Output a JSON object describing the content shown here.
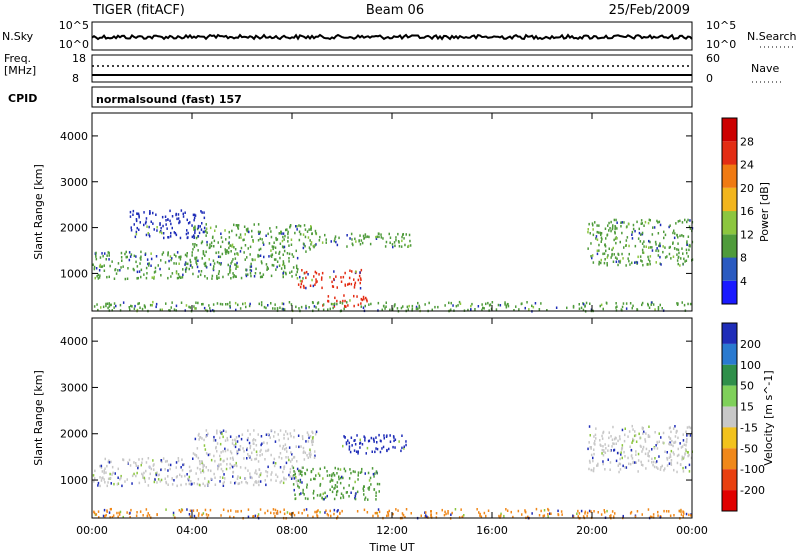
{
  "header": {
    "title": "TIGER (fitACF)",
    "beam": "Beam 06",
    "date": "25/Feb/2009"
  },
  "panels": {
    "nsky": {
      "left_label": "N.Sky",
      "right_label": "N.Search",
      "ticks_left": [
        "10^5",
        "10^0"
      ],
      "ticks_right": [
        "10^5",
        "10^0"
      ]
    },
    "freq": {
      "left_label_1": "Freq.",
      "left_label_2": "[MHz]",
      "right_label": "Nave",
      "ticks_left": [
        "18",
        "8"
      ],
      "ticks_right": [
        "60",
        "0"
      ]
    },
    "cpid": {
      "label": "CPID",
      "value": "normalsound (fast) 157"
    }
  },
  "chart_data": [
    {
      "type": "heatmap",
      "title": "",
      "xlabel": "",
      "ylabel": "Slant Range [km]",
      "x_ticks": [
        "00:00",
        "04:00",
        "08:00",
        "12:00",
        "16:00",
        "20:00",
        "00:00"
      ],
      "xlim_hours": [
        0,
        24
      ],
      "y_ticks": [
        1000,
        2000,
        3000,
        4000
      ],
      "ylim": [
        180,
        4500
      ],
      "colorbar": {
        "label": "Power [dB]",
        "ticks": [
          "4",
          "8",
          "12",
          "16",
          "20",
          "24",
          "28"
        ],
        "colors": [
          "#1a1aff",
          "#2a5ac0",
          "#4f9b3b",
          "#8cc63f",
          "#f2b51d",
          "#f07a12",
          "#e32d14",
          "#cc0000"
        ]
      },
      "regions": [
        {
          "t": [
            0.0,
            8.5
          ],
          "r": [
            900,
            1500
          ],
          "level": "green"
        },
        {
          "t": [
            4.0,
            9.0
          ],
          "r": [
            1500,
            2100
          ],
          "level": "green"
        },
        {
          "t": [
            1.5,
            4.5
          ],
          "r": [
            1800,
            2400
          ],
          "level": "blue"
        },
        {
          "t": [
            8.2,
            10.8
          ],
          "r": [
            700,
            1100
          ],
          "level": "red"
        },
        {
          "t": [
            9.2,
            11.0
          ],
          "r": [
            300,
            550
          ],
          "level": "red"
        },
        {
          "t": [
            9.0,
            12.8
          ],
          "r": [
            1600,
            1900
          ],
          "level": "green"
        },
        {
          "t": [
            19.8,
            24.0
          ],
          "r": [
            1200,
            2200
          ],
          "level": "green"
        },
        {
          "t": [
            0.0,
            24.0
          ],
          "r": [
            200,
            400
          ],
          "level": "green"
        }
      ]
    },
    {
      "type": "heatmap",
      "title": "",
      "xlabel": "Time UT",
      "ylabel": "Slant Range [km]",
      "x_ticks": [
        "00:00",
        "04:00",
        "08:00",
        "12:00",
        "16:00",
        "20:00",
        "00:00"
      ],
      "xlim_hours": [
        0,
        24
      ],
      "y_ticks": [
        1000,
        2000,
        3000,
        4000
      ],
      "ylim": [
        180,
        4500
      ],
      "colorbar": {
        "label": "Velocity [m s^-1]",
        "ticks": [
          "200",
          "100",
          "50",
          "15",
          "-15",
          "-50",
          "-100",
          "-200"
        ],
        "colors": [
          "#1f2db8",
          "#2a7ad0",
          "#2f8f4a",
          "#7fd05a",
          "#c8c8c8",
          "#f2c21d",
          "#f0881a",
          "#e8400f",
          "#e00000"
        ]
      },
      "regions": [
        {
          "t": [
            0.0,
            8.5
          ],
          "r": [
            900,
            1500
          ],
          "level": "gray"
        },
        {
          "t": [
            4.0,
            9.0
          ],
          "r": [
            1500,
            2100
          ],
          "level": "gray"
        },
        {
          "t": [
            8.0,
            11.5
          ],
          "r": [
            600,
            1300
          ],
          "level": "green"
        },
        {
          "t": [
            10.0,
            12.8
          ],
          "r": [
            1600,
            2000
          ],
          "level": "blue"
        },
        {
          "t": [
            19.8,
            24.0
          ],
          "r": [
            1200,
            2200
          ],
          "level": "gray"
        },
        {
          "t": [
            0.0,
            24.0
          ],
          "r": [
            200,
            400
          ],
          "level": "orange"
        }
      ]
    }
  ]
}
